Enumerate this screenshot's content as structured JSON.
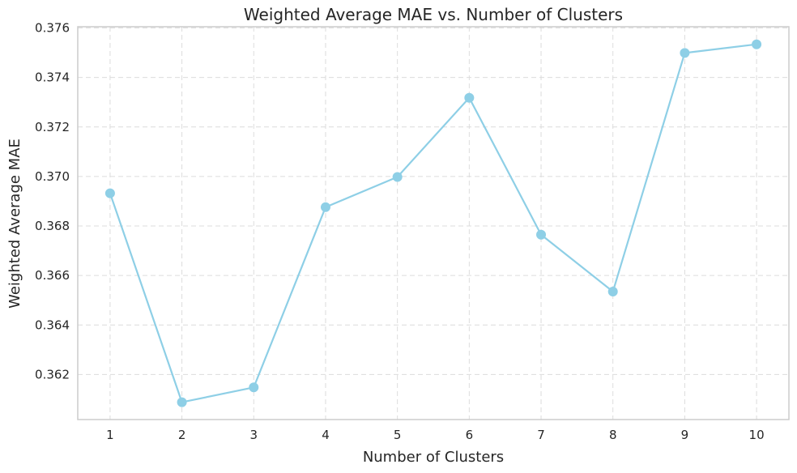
{
  "chart_data": {
    "type": "line",
    "title": "Weighted Average MAE vs. Number of Clusters",
    "xlabel": "Number of Clusters",
    "ylabel": "Weighted Average MAE",
    "x": [
      1,
      2,
      3,
      4,
      5,
      6,
      7,
      8,
      9,
      10
    ],
    "series": [
      {
        "values": [
          0.36932,
          0.36088,
          0.36148,
          0.36876,
          0.36998,
          0.37318,
          0.36765,
          0.36535,
          0.37499,
          0.37534
        ]
      }
    ],
    "xlim": [
      0.55,
      10.45
    ],
    "ylim": [
      0.36018,
      0.37605
    ],
    "xticks": [
      "1",
      "2",
      "3",
      "4",
      "5",
      "6",
      "7",
      "8",
      "9",
      "10"
    ],
    "yticks": [
      0.362,
      0.364,
      0.366,
      0.368,
      0.37,
      0.372,
      0.374,
      0.376
    ],
    "ytick_labels": [
      "0.362",
      "0.364",
      "0.366",
      "0.368",
      "0.370",
      "0.372",
      "0.374",
      "0.376"
    ],
    "grid": true,
    "line_color": "#8ecfe6",
    "marker": "circle",
    "legend": "none"
  }
}
